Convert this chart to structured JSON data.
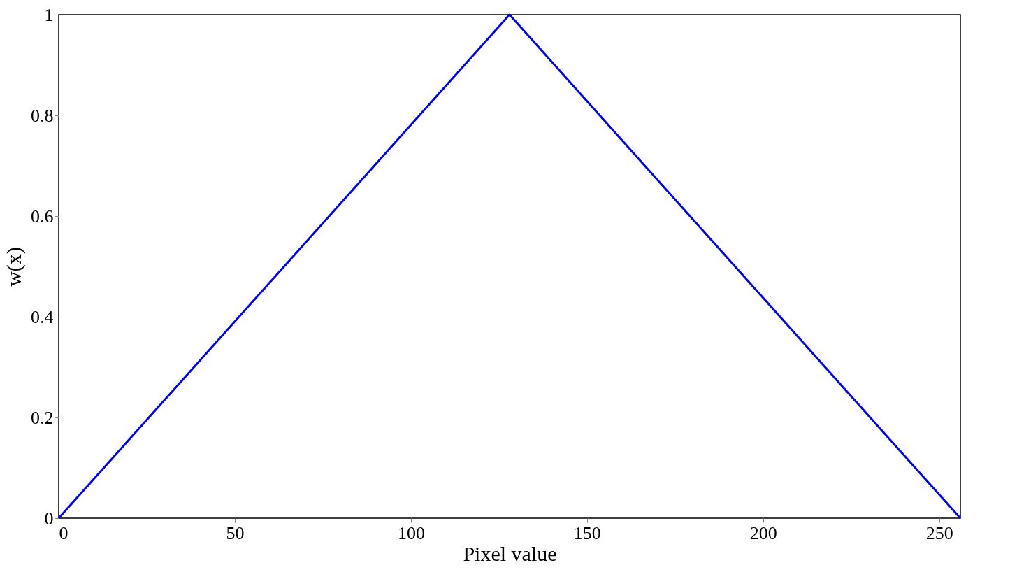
{
  "chart_data": {
    "type": "line",
    "xlabel": "Pixel value",
    "ylabel": "w(x)",
    "x": [
      0,
      128,
      256
    ],
    "series": [
      {
        "color": "#0000ff",
        "values": [
          0,
          1,
          0
        ]
      }
    ],
    "xlim": [
      0,
      256
    ],
    "xticks": [
      0,
      50,
      100,
      150,
      200,
      250
    ],
    "ylim": [
      0,
      1
    ],
    "yticks": [
      0,
      0.2,
      0.4,
      0.6,
      0.8,
      1
    ],
    "grid": false,
    "marker": "none",
    "line_style": "solid"
  }
}
